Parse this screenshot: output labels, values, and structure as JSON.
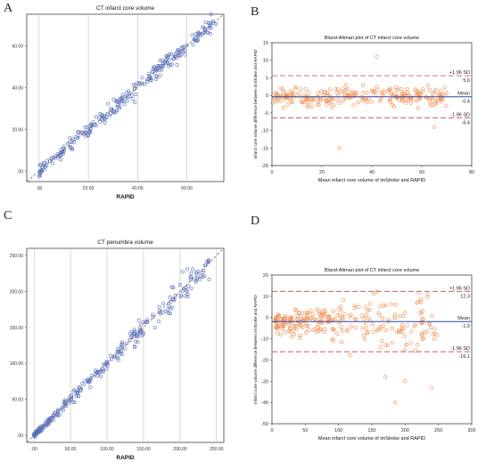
{
  "chart_data": [
    {
      "panel_label": "A",
      "type": "scatter",
      "title": "CT infarct core volume",
      "xlabel": "RAPID",
      "ylabel": "imStroke",
      "xlim": [
        -5,
        75
      ],
      "ylim": [
        -5,
        75
      ],
      "xticks": [
        0,
        20,
        40,
        60
      ],
      "xtick_labels": [
        ".00",
        "20.00",
        "40.00",
        "60.00"
      ],
      "yticks": [
        0,
        20,
        40,
        60
      ],
      "ytick_labels": [
        ".00",
        "20.00",
        "40.00",
        "60.00"
      ],
      "grid": "vertical",
      "diagonal": "dashed identity line",
      "marker_color": "#5a6fb8",
      "point_count": 260,
      "trend": "points tightly along identity line, spread about ±4",
      "x_range_of_points": [
        0,
        72
      ]
    },
    {
      "panel_label": "B",
      "type": "scatter",
      "title": "Bland-Altman plot of CT infarct core volume",
      "xlabel": "Mean infarct core volume of imStroke and RAPID",
      "ylabel": "infarct core volume difference between imStroke and RAPID",
      "xlim": [
        0,
        80
      ],
      "ylim": [
        -20,
        15
      ],
      "xticks": [
        0,
        20,
        40,
        60,
        80
      ],
      "yticks": [
        -20,
        -15,
        -10,
        -5,
        0,
        5,
        10,
        15
      ],
      "mean": -0.4,
      "upper_loa": 5.6,
      "lower_loa": -6.4,
      "line_labels": {
        "upper": "+1.96 SD",
        "upper_value": "5.6",
        "mean": "Mean",
        "mean_value": "-0.4",
        "lower": "-1.96 SD",
        "lower_value": "-6.4"
      },
      "marker_color": "#f08a4b",
      "line_colors": {
        "mean": "#2b4aa8",
        "loa": "#c46060"
      },
      "point_count": 260,
      "x_range_of_points": [
        0,
        70
      ],
      "outliers": [
        [
          42,
          11
        ],
        [
          27,
          -15
        ],
        [
          65,
          -9
        ]
      ]
    },
    {
      "panel_label": "C",
      "type": "scatter",
      "title": "CT penumbra volume",
      "xlabel": "RAPID",
      "ylabel": "imStroke",
      "xlim": [
        -10,
        260
      ],
      "ylim": [
        -10,
        260
      ],
      "xticks": [
        0,
        50,
        100,
        150,
        200,
        250
      ],
      "xtick_labels": [
        ".00",
        "50.00",
        "100.00",
        "150.00",
        "200.00",
        "250.00"
      ],
      "yticks": [
        0,
        50,
        100,
        150,
        200,
        250
      ],
      "ytick_labels": [
        ".00",
        "50.00",
        "100.00",
        "150.00",
        "200.00",
        "250.00"
      ],
      "grid": "vertical",
      "diagonal": "dashed identity line",
      "marker_color": "#5a6fb8",
      "point_count": 280,
      "trend": "points along identity line, spread grows with volume",
      "x_range_of_points": [
        0,
        240
      ]
    },
    {
      "panel_label": "D",
      "type": "scatter",
      "title": "Bland-Altman plot of CT infarct core volume",
      "xlabel": "Mean infarct core volume of imStroke and RAPID",
      "ylabel": "infarct core volume difference between imStroke and RAPID",
      "xlim": [
        0,
        300
      ],
      "ylim": [
        -50,
        20
      ],
      "xticks": [
        0,
        50,
        100,
        150,
        200,
        250,
        300
      ],
      "yticks": [
        -50,
        -40,
        -30,
        -20,
        -10,
        0,
        10,
        20
      ],
      "mean": -1.9,
      "upper_loa": 12.3,
      "lower_loa": -16.1,
      "line_labels": {
        "upper": "+1.96 SD",
        "upper_value": "12.3",
        "mean": "Mean",
        "mean_value": "-1.9",
        "lower": "-1.96 SD",
        "lower_value": "-16.1"
      },
      "marker_color": "#f08a4b",
      "line_colors": {
        "mean": "#2b4aa8",
        "loa": "#c46060"
      },
      "point_count": 280,
      "x_range_of_points": [
        5,
        250
      ],
      "outliers": [
        [
          185,
          -40
        ],
        [
          240,
          -33
        ],
        [
          200,
          -30
        ],
        [
          170,
          -28
        ]
      ]
    }
  ]
}
